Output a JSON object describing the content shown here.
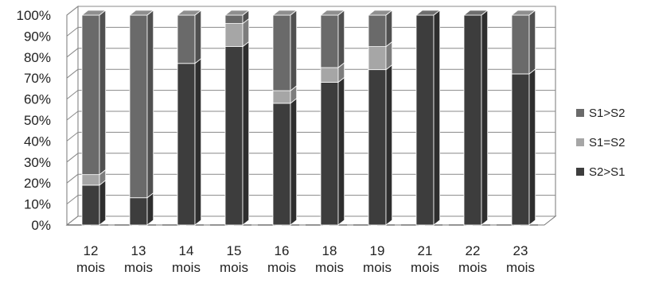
{
  "chart_data": {
    "type": "bar",
    "stacked": true,
    "percent": true,
    "style": "3d-column",
    "categories": [
      [
        "12",
        "mois"
      ],
      [
        "13",
        "mois"
      ],
      [
        "14",
        "mois"
      ],
      [
        "15",
        "mois"
      ],
      [
        "16",
        "mois"
      ],
      [
        "18",
        "mois"
      ],
      [
        "19",
        "mois"
      ],
      [
        "21",
        "mois"
      ],
      [
        "22",
        "mois"
      ],
      [
        "23",
        "mois"
      ]
    ],
    "series": [
      {
        "name": "S2>S1",
        "color": "#3d3d3d",
        "values": [
          19,
          13,
          77,
          85,
          58,
          68,
          74,
          100,
          100,
          72
        ]
      },
      {
        "name": "S1=S2",
        "color": "#a6a6a6",
        "values": [
          5,
          0,
          0,
          11,
          6,
          7,
          11,
          0,
          0,
          0
        ]
      },
      {
        "name": "S1>S2",
        "color": "#6a6a6a",
        "values": [
          76,
          87,
          23,
          4,
          36,
          25,
          15,
          0,
          0,
          28
        ]
      }
    ],
    "yticks": [
      "0%",
      "10%",
      "20%",
      "30%",
      "40%",
      "50%",
      "60%",
      "70%",
      "80%",
      "90%",
      "100%"
    ],
    "ylim": [
      0,
      100
    ],
    "grid": true,
    "legend": {
      "position": "right",
      "order": [
        "S1>S2",
        "S1=S2",
        "S2>S1"
      ]
    },
    "title": "",
    "xlabel": "",
    "ylabel": ""
  }
}
